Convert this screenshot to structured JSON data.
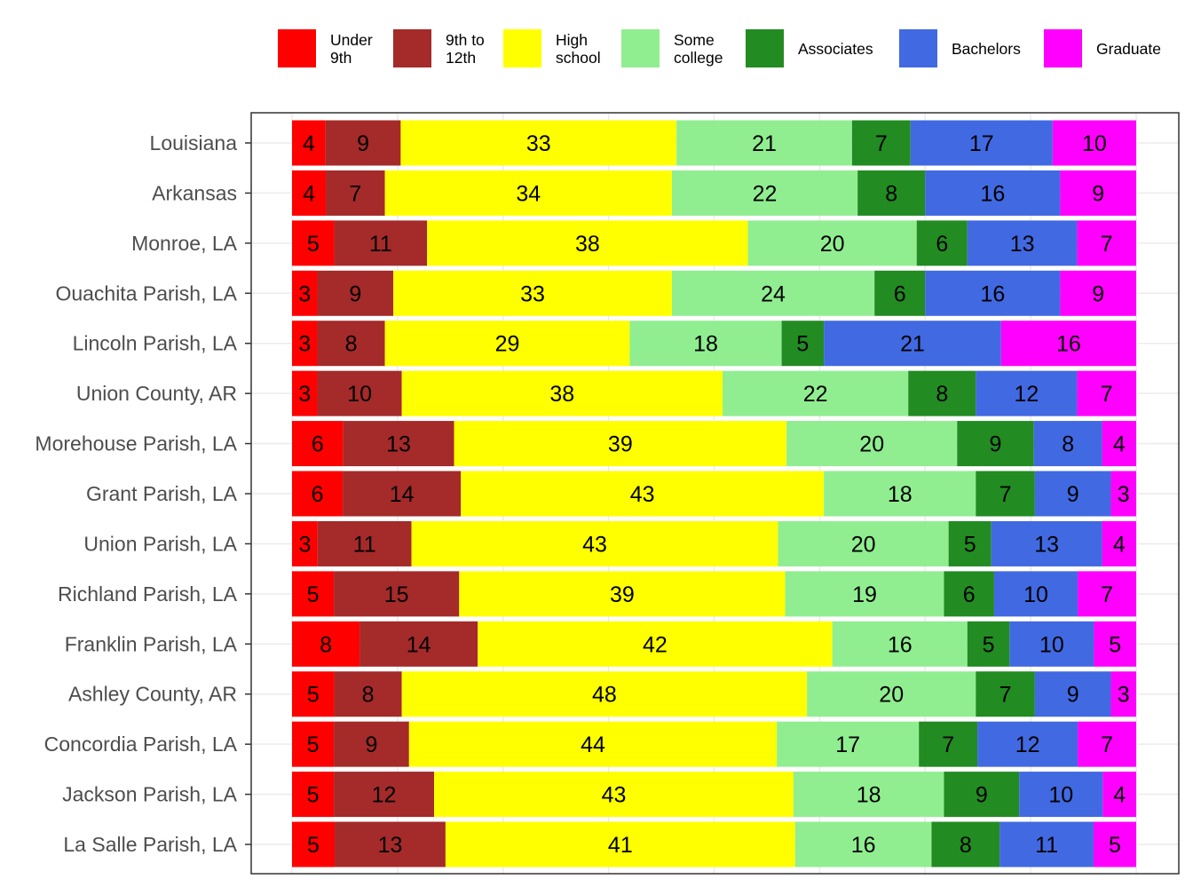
{
  "chart_data": {
    "type": "bar",
    "orientation": "horizontal",
    "stacked": true,
    "title": "",
    "xlabel": "",
    "ylabel": "",
    "xlim": [
      0,
      100
    ],
    "grid": true,
    "legend_position": "top",
    "categories": [
      "Louisiana",
      "Arkansas",
      "Monroe, LA",
      "Ouachita Parish, LA",
      "Lincoln Parish, LA",
      "Union County, AR",
      "Morehouse Parish, LA",
      "Grant Parish, LA",
      "Union Parish, LA",
      "Richland Parish, LA",
      "Franklin Parish, LA",
      "Ashley County, AR",
      "Concordia Parish, LA",
      "Jackson Parish, LA",
      "La Salle Parish, LA"
    ],
    "series": [
      {
        "name": "Under 9th",
        "legend_lines": [
          "Under",
          "9th"
        ],
        "color": "#ff0000",
        "values": [
          4,
          4,
          5,
          3,
          3,
          3,
          6,
          6,
          3,
          5,
          8,
          5,
          5,
          5,
          5
        ]
      },
      {
        "name": "9th to 12th",
        "legend_lines": [
          "9th to",
          "12th"
        ],
        "color": "#a52a2a",
        "values": [
          9,
          7,
          11,
          9,
          8,
          10,
          13,
          14,
          11,
          15,
          14,
          8,
          9,
          12,
          13
        ]
      },
      {
        "name": "High school",
        "legend_lines": [
          "High",
          "school"
        ],
        "color": "#ffff00",
        "values": [
          33,
          34,
          38,
          33,
          29,
          38,
          39,
          43,
          43,
          39,
          42,
          48,
          44,
          43,
          41
        ]
      },
      {
        "name": "Some college",
        "legend_lines": [
          "Some",
          "college"
        ],
        "color": "#90ee90",
        "values": [
          21,
          22,
          20,
          24,
          18,
          22,
          20,
          18,
          20,
          19,
          16,
          20,
          17,
          18,
          16
        ]
      },
      {
        "name": "Associates",
        "legend_lines": [
          "Associates"
        ],
        "color": "#228b22",
        "values": [
          7,
          8,
          6,
          6,
          5,
          8,
          9,
          7,
          5,
          6,
          5,
          7,
          7,
          9,
          8
        ]
      },
      {
        "name": "Bachelors",
        "legend_lines": [
          "Bachelors"
        ],
        "color": "#4169e1",
        "values": [
          17,
          16,
          13,
          16,
          21,
          12,
          8,
          9,
          13,
          10,
          10,
          9,
          12,
          10,
          11
        ]
      },
      {
        "name": "Graduate",
        "legend_lines": [
          "Graduate"
        ],
        "color": "#ff00ff",
        "values": [
          10,
          9,
          7,
          9,
          16,
          7,
          4,
          3,
          4,
          7,
          5,
          3,
          7,
          4,
          5
        ]
      }
    ]
  }
}
